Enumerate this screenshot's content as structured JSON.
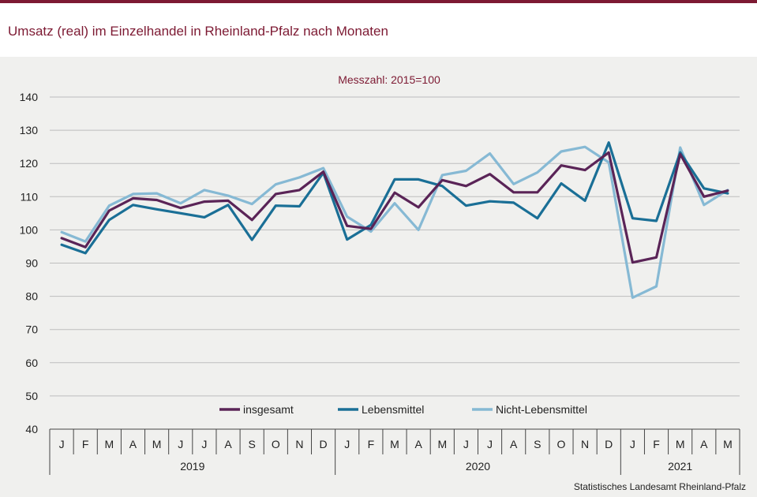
{
  "header": {
    "title": "Umsatz (real) im Einzelhandel in Rheinland-Pfalz nach Monaten"
  },
  "footer": {
    "source": "Statistisches Landesamt  Rheinland-Pfalz"
  },
  "colors": {
    "accent": "#7d1a33",
    "panel_background": "#f0f0ee"
  },
  "chart_data": {
    "type": "line",
    "subtitle": "Messzahl:  2015=100",
    "ylim": [
      40,
      140
    ],
    "yticks": [
      40,
      50,
      60,
      70,
      80,
      90,
      100,
      110,
      120,
      130,
      140
    ],
    "grid": true,
    "legend_position": "bottom-center",
    "months": [
      "J",
      "F",
      "M",
      "A",
      "M",
      "J",
      "J",
      "A",
      "S",
      "O",
      "N",
      "D",
      "J",
      "F",
      "M",
      "A",
      "M",
      "J",
      "J",
      "A",
      "S",
      "O",
      "N",
      "D",
      "J",
      "F",
      "M",
      "A",
      "M"
    ],
    "years": [
      {
        "label": "2019",
        "count": 12
      },
      {
        "label": "2020",
        "count": 12
      },
      {
        "label": "2021",
        "count": 5
      }
    ],
    "series": [
      {
        "name": "insgesamt",
        "color": "#5a2457",
        "values": [
          97.5,
          94.8,
          105.8,
          109.5,
          109.0,
          106.6,
          108.5,
          108.8,
          103.0,
          110.8,
          112.0,
          117.5,
          101.2,
          100.3,
          111.2,
          106.8,
          115.0,
          113.2,
          116.8,
          111.3,
          111.3,
          119.4,
          118.0,
          123.3,
          90.2,
          91.7,
          122.8,
          110.0,
          111.8
        ]
      },
      {
        "name": "Lebensmittel",
        "color": "#1a6f96",
        "values": [
          95.5,
          93.0,
          103.0,
          107.5,
          106.2,
          105.0,
          103.8,
          107.5,
          97.0,
          107.3,
          107.1,
          117.2,
          97.1,
          101.5,
          115.2,
          115.2,
          113.2,
          107.3,
          108.6,
          108.2,
          103.5,
          114.0,
          108.8,
          126.3,
          103.5,
          102.7,
          123.3,
          112.5,
          111.0
        ]
      },
      {
        "name": "Nicht-Lebensmittel",
        "color": "#86b9d4",
        "values": [
          99.3,
          96.5,
          107.3,
          110.8,
          111.0,
          108.0,
          112.0,
          110.3,
          107.8,
          113.7,
          115.8,
          118.6,
          104.0,
          99.5,
          108.0,
          100.0,
          116.5,
          117.8,
          123.0,
          113.8,
          117.3,
          123.6,
          125.0,
          120.3,
          79.6,
          83.0,
          124.8,
          107.5,
          112.0
        ]
      }
    ]
  }
}
